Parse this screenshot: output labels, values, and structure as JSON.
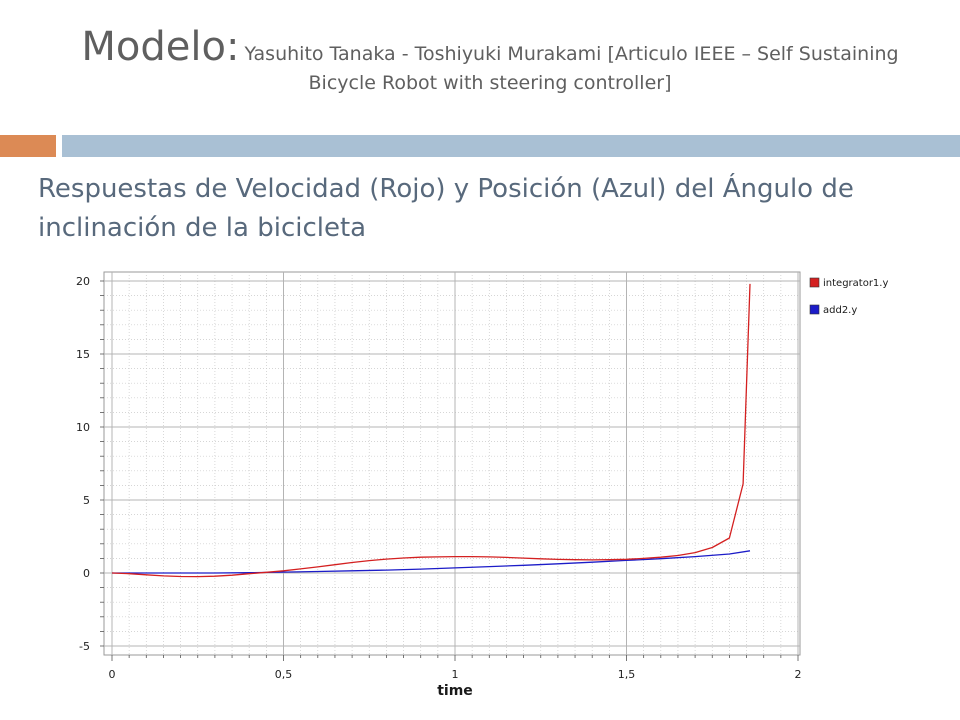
{
  "slide": {
    "title_main": "Modelo:",
    "title_sub": "Yasuhito Tanaka - Toshiyuki Murakami [Articulo IEEE – Self Sustaining Bicycle Robot with steering controller]",
    "subtitle": "Respuestas de Velocidad (Rojo) y Posición (Azul) del Ángulo de inclinación de la bicicleta",
    "accent_color": "#dc8a55",
    "bar_color": "#a9c0d4",
    "subtitle_color": "#58697c"
  },
  "chart_data": {
    "type": "line",
    "xlabel": "time",
    "ylabel": "",
    "xlim": [
      0,
      2
    ],
    "ylim": [
      -5,
      20
    ],
    "xticks": [
      {
        "v": 0,
        "label": "0"
      },
      {
        "v": 0.5,
        "label": "0,5"
      },
      {
        "v": 1,
        "label": "1"
      },
      {
        "v": 1.5,
        "label": "1,5"
      },
      {
        "v": 2,
        "label": "2"
      }
    ],
    "yticks": [
      {
        "v": -5,
        "label": "-5"
      },
      {
        "v": 0,
        "label": "0"
      },
      {
        "v": 5,
        "label": "5"
      },
      {
        "v": 10,
        "label": "10"
      },
      {
        "v": 15,
        "label": "15"
      },
      {
        "v": 20,
        "label": "20"
      }
    ],
    "grid": true,
    "legend_position": "right-top",
    "series": [
      {
        "name": "integrator1.y",
        "color": "#d42020",
        "x": [
          0,
          0.05,
          0.1,
          0.15,
          0.2,
          0.25,
          0.3,
          0.35,
          0.4,
          0.45,
          0.5,
          0.55,
          0.6,
          0.65,
          0.7,
          0.75,
          0.8,
          0.85,
          0.9,
          0.95,
          1.0,
          1.05,
          1.1,
          1.15,
          1.2,
          1.25,
          1.3,
          1.35,
          1.4,
          1.45,
          1.5,
          1.55,
          1.6,
          1.65,
          1.7,
          1.75,
          1.8,
          1.84,
          1.86
        ],
        "y": [
          0.0,
          -0.05,
          -0.12,
          -0.2,
          -0.24,
          -0.25,
          -0.22,
          -0.15,
          -0.05,
          0.05,
          0.15,
          0.28,
          0.42,
          0.57,
          0.72,
          0.85,
          0.95,
          1.03,
          1.08,
          1.1,
          1.12,
          1.12,
          1.1,
          1.07,
          1.02,
          0.97,
          0.93,
          0.91,
          0.9,
          0.91,
          0.94,
          1.0,
          1.08,
          1.2,
          1.4,
          1.75,
          2.4,
          6.1,
          19.8
        ]
      },
      {
        "name": "add2.y",
        "color": "#1c1cc8",
        "x": [
          0,
          0.1,
          0.2,
          0.3,
          0.4,
          0.5,
          0.6,
          0.7,
          0.8,
          0.9,
          1.0,
          1.1,
          1.2,
          1.3,
          1.4,
          1.5,
          1.6,
          1.7,
          1.8,
          1.86
        ],
        "y": [
          0.0,
          0.0,
          0.0,
          0.0,
          0.02,
          0.06,
          0.1,
          0.15,
          0.2,
          0.27,
          0.35,
          0.44,
          0.53,
          0.63,
          0.74,
          0.86,
          0.98,
          1.12,
          1.3,
          1.52
        ]
      }
    ]
  }
}
